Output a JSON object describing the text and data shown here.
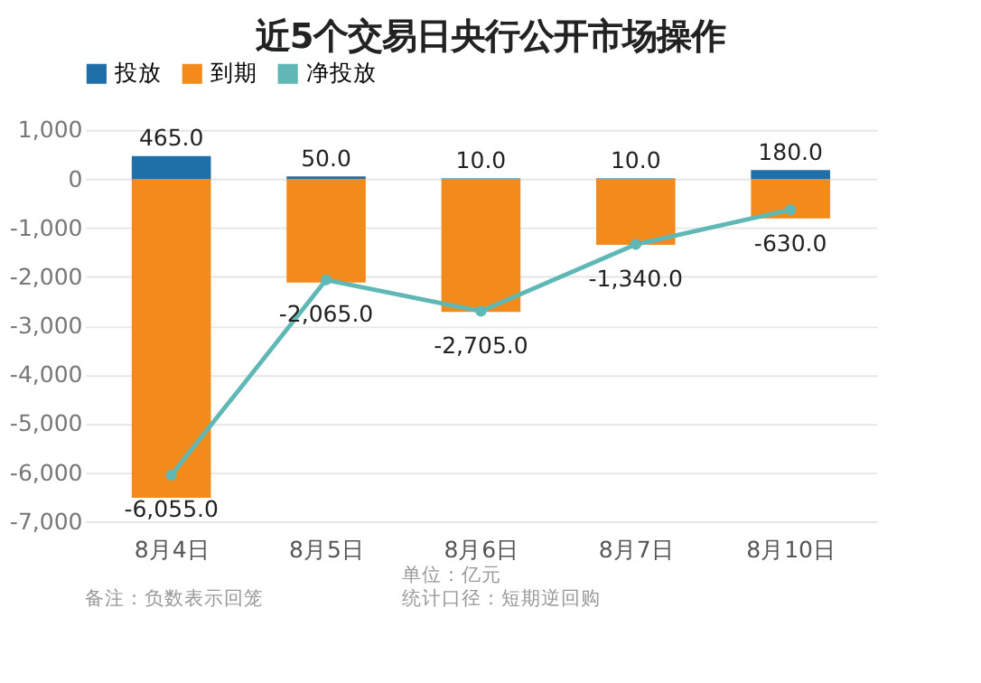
{
  "chart_data": {
    "type": "bar",
    "title": "近5个交易日央行公开市场操作",
    "categories": [
      "8月4日",
      "8月5日",
      "8月6日",
      "8月7日",
      "8月10日"
    ],
    "stacked": true,
    "series": [
      {
        "name": "投放",
        "color": "#1f6fa8",
        "values": [
          465,
          50,
          10,
          10,
          180
        ],
        "value_labels": [
          "465.0",
          "50.0",
          "10.0",
          "10.0",
          "180.0"
        ]
      },
      {
        "name": "到期",
        "color": "#f28a1c",
        "values": [
          -6520,
          -2120,
          -2720,
          -1350,
          -810
        ]
      },
      {
        "name": "净投放",
        "type": "line",
        "color": "#5fb8b5",
        "marker": "circle",
        "values": [
          -6055,
          -2065,
          -2705,
          -1340,
          -630
        ],
        "value_labels": [
          "-6,055.0",
          "-2,065.0",
          "-2,705.0",
          "-1,340.0",
          "-630.0"
        ]
      }
    ],
    "ylim": [
      -7000,
      1000
    ],
    "yticks": [
      {
        "value": 1000,
        "label": "1,000"
      },
      0,
      {
        "value": -1000,
        "label": "-1,000"
      },
      {
        "value": -2000,
        "label": "-2,000"
      },
      {
        "value": -3000,
        "label": "-3,000"
      },
      {
        "value": -4000,
        "label": "-4,000"
      },
      {
        "value": -5000,
        "label": "-5,000"
      },
      {
        "value": -6000,
        "label": "-6,000"
      },
      {
        "value": -7000,
        "label": "-7,000"
      }
    ],
    "grid": "y",
    "legend": "top",
    "annotations": [
      "单位：亿元",
      "备注：负数表示回笼",
      "统计口径：短期逆回购"
    ]
  }
}
